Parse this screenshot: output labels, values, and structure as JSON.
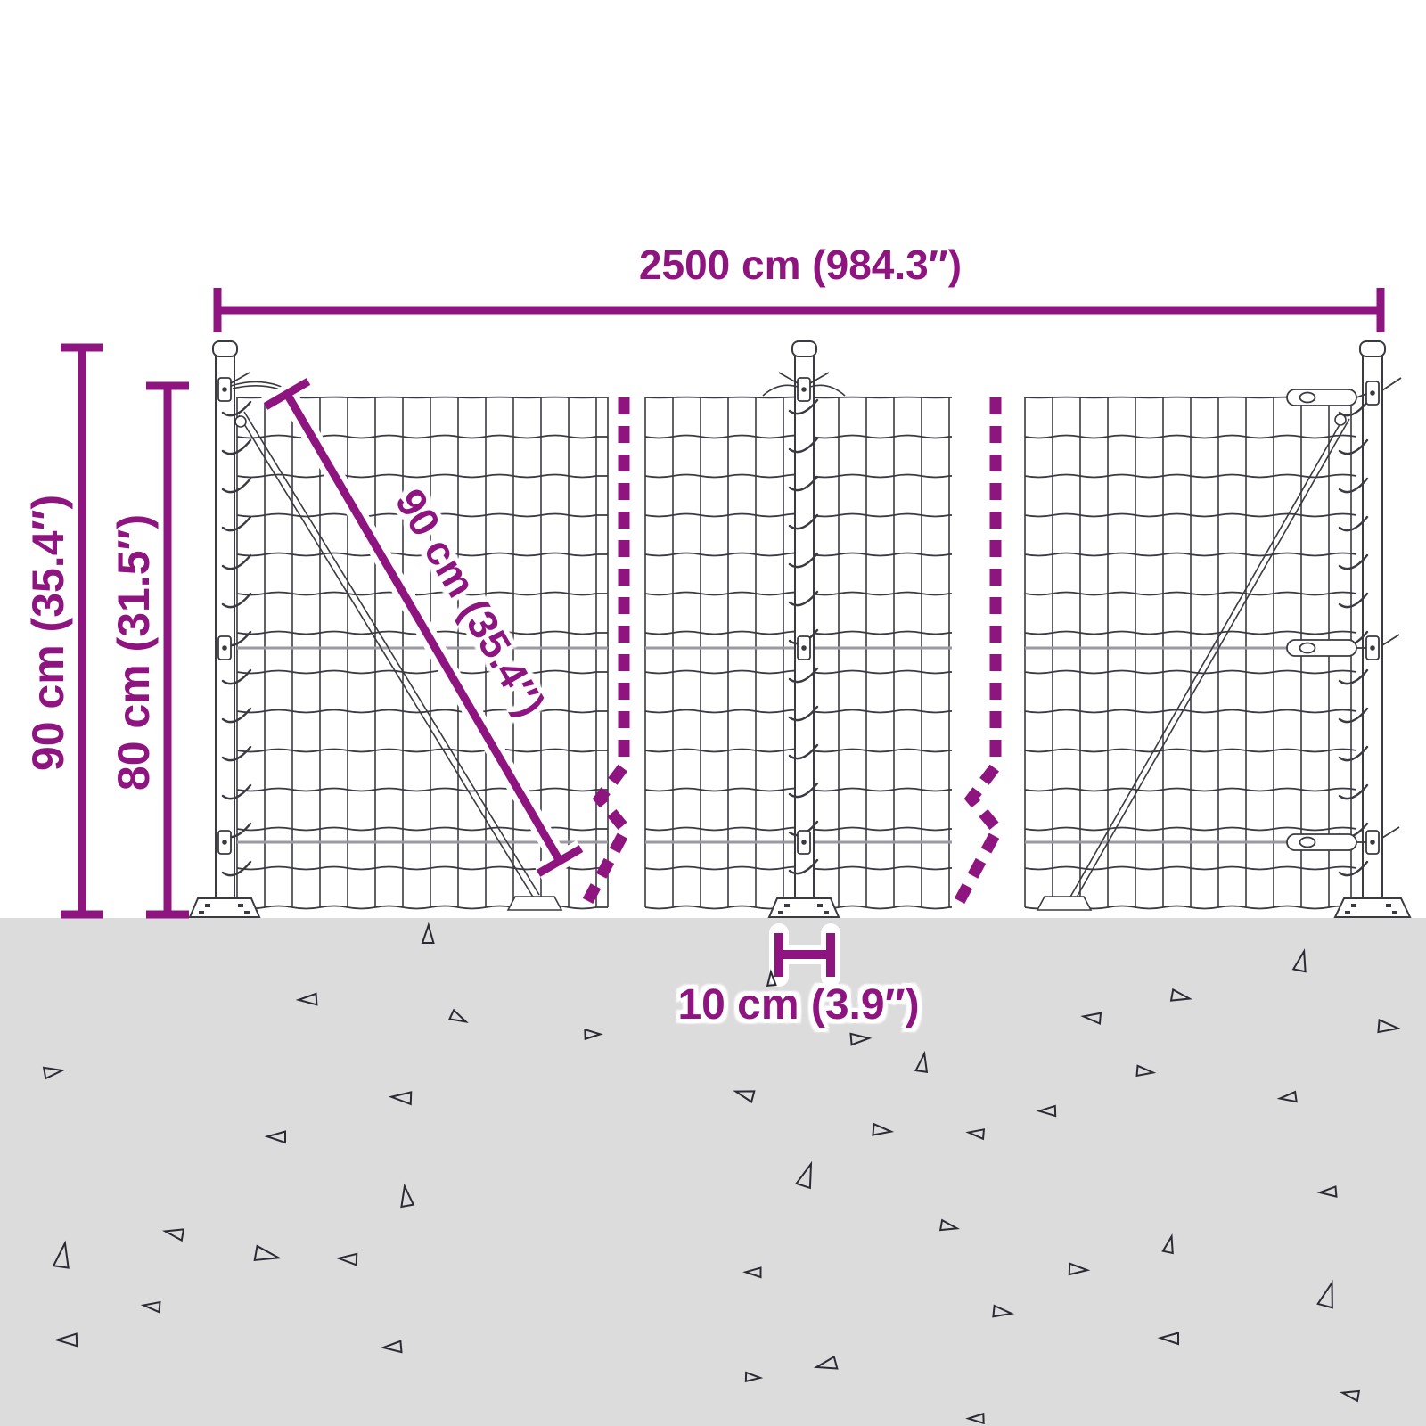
{
  "diagram": {
    "subject": "wire-mesh-fence-dimension-diagram",
    "background": "#ffffff",
    "accent": "#8E1480",
    "ground_color": "#dcdcdd",
    "line_art_color": "#3a3a41",
    "wire_color": "#9a9aa0",
    "triangle_color": "#2a2a32"
  },
  "labels": {
    "total_width": "2500 cm (984.3″)",
    "total_height": "90 cm (35.4″)",
    "mesh_height": "80 cm (31.5″)",
    "mesh_diagonal": "90 cm (35.4″)",
    "post_inset": "10 cm (3.9″)"
  },
  "ground": {
    "triangles": [
      [
        480,
        1048,
        20,
        0
      ],
      [
        865,
        1098,
        15,
        355
      ],
      [
        1460,
        1078,
        22,
        12
      ],
      [
        345,
        1122,
        20,
        266
      ],
      [
        1325,
        1118,
        20,
        100
      ],
      [
        515,
        1142,
        18,
        115
      ],
      [
        1225,
        1142,
        19,
        275
      ],
      [
        665,
        1160,
        17,
        88
      ],
      [
        965,
        1165,
        20,
        85
      ],
      [
        1558,
        1152,
        22,
        95
      ],
      [
        60,
        1202,
        20,
        80
      ],
      [
        1035,
        1192,
        20,
        8
      ],
      [
        1285,
        1202,
        18,
        95
      ],
      [
        450,
        1232,
        22,
        272
      ],
      [
        835,
        1228,
        20,
        285
      ],
      [
        1175,
        1247,
        18,
        268
      ],
      [
        1445,
        1232,
        18,
        262
      ],
      [
        310,
        1276,
        20,
        270
      ],
      [
        990,
        1268,
        20,
        95
      ],
      [
        1095,
        1272,
        17,
        275
      ],
      [
        905,
        1318,
        26,
        18
      ],
      [
        455,
        1342,
        22,
        350
      ],
      [
        1490,
        1338,
        18,
        265
      ],
      [
        195,
        1384,
        20,
        280
      ],
      [
        1065,
        1376,
        18,
        100
      ],
      [
        70,
        1408,
        27,
        8
      ],
      [
        300,
        1408,
        26,
        100
      ],
      [
        390,
        1413,
        20,
        272
      ],
      [
        845,
        1428,
        17,
        270
      ],
      [
        1210,
        1424,
        20,
        92
      ],
      [
        1312,
        1396,
        18,
        12
      ],
      [
        1490,
        1452,
        27,
        15
      ],
      [
        170,
        1466,
        18,
        275
      ],
      [
        1125,
        1472,
        20,
        96
      ],
      [
        75,
        1504,
        22,
        268
      ],
      [
        440,
        1512,
        20,
        265
      ],
      [
        927,
        1532,
        22,
        255
      ],
      [
        1312,
        1502,
        20,
        270
      ],
      [
        1095,
        1592,
        17,
        268
      ],
      [
        845,
        1545,
        16,
        92
      ],
      [
        1515,
        1565,
        18,
        280
      ]
    ]
  }
}
